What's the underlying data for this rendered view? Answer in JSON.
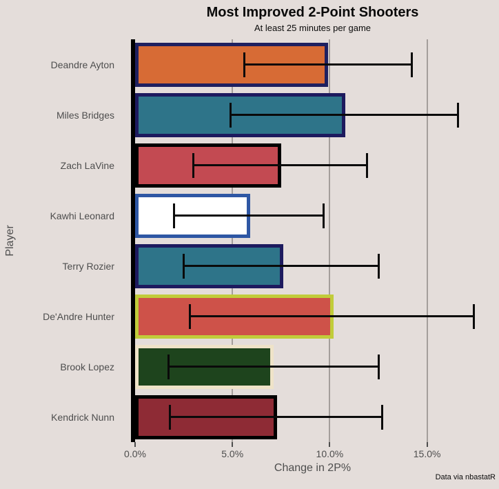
{
  "chart_data": {
    "type": "bar",
    "orientation": "horizontal",
    "title": "Most Improved 2-Point Shooters",
    "subtitle": "At least 25 minutes per game",
    "xlabel": "Change in 2P%",
    "ylabel": "Player",
    "caption": "Data via nbastatR",
    "xlim": [
      0,
      18.2
    ],
    "grid": "vertical-only",
    "legend": "none",
    "xticks": [
      {
        "value": 0,
        "label": "0.0%"
      },
      {
        "value": 5,
        "label": "5.0%"
      },
      {
        "value": 10,
        "label": "10.0%"
      },
      {
        "value": 15,
        "label": "15.0%"
      }
    ],
    "series": [
      {
        "name": "Deandre Ayton",
        "value": 9.9,
        "ci_low": 5.6,
        "ci_high": 14.2,
        "fill": "#D76B35",
        "stroke": "#1E2060"
      },
      {
        "name": "Miles Bridges",
        "value": 10.8,
        "ci_low": 4.9,
        "ci_high": 16.6,
        "fill": "#2E7489",
        "stroke": "#1D1A5E"
      },
      {
        "name": "Zach LaVine",
        "value": 7.5,
        "ci_low": 3.0,
        "ci_high": 11.9,
        "fill": "#C34A52",
        "stroke": "#000000"
      },
      {
        "name": "Kawhi Leonard",
        "value": 5.9,
        "ci_low": 2.0,
        "ci_high": 9.7,
        "fill": "#FFFFFF",
        "stroke": "#2E57A4"
      },
      {
        "name": "Terry Rozier",
        "value": 7.6,
        "ci_low": 2.5,
        "ci_high": 12.5,
        "fill": "#2E7489",
        "stroke": "#1D1A5E"
      },
      {
        "name": "De'Andre Hunter",
        "value": 10.2,
        "ci_low": 2.8,
        "ci_high": 17.4,
        "fill": "#CE5249",
        "stroke": "#C1CC3A"
      },
      {
        "name": "Brook Lopez",
        "value": 7.1,
        "ci_low": 1.7,
        "ci_high": 12.5,
        "fill": "#1E441D",
        "stroke": "#EFE3C8"
      },
      {
        "name": "Kendrick Nunn",
        "value": 7.3,
        "ci_low": 1.8,
        "ci_high": 12.7,
        "fill": "#8E2B35",
        "stroke": "#000000"
      }
    ],
    "colors": {
      "background": "#E4DDDA",
      "gridline": "#A49E9B",
      "axis_line": "#000000",
      "axis_text": "#4D4D4D",
      "title_text": "#0A0A0A",
      "whisker": "#0A0A0A"
    }
  }
}
